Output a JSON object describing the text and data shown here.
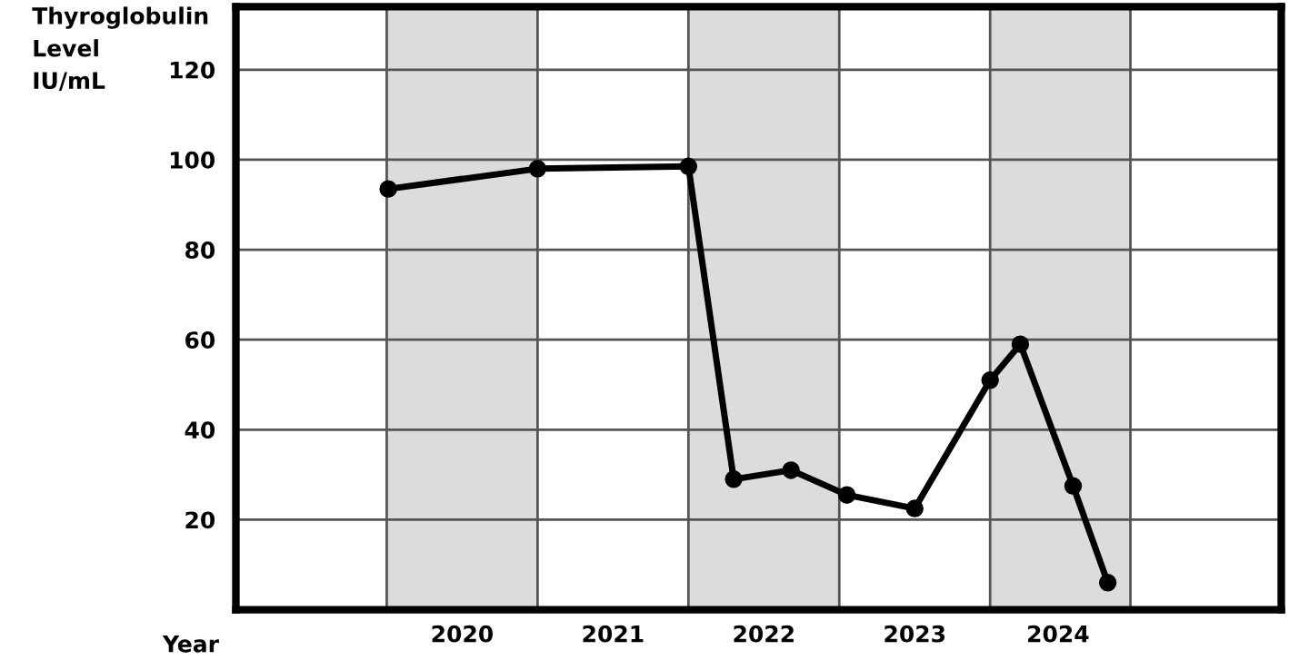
{
  "chart_data": {
    "type": "line",
    "ylabel": "Thyroglobulin\nLevel\nIU/mL",
    "xlabel": "Year",
    "x": [
      2020.01,
      2021.0,
      2022.0,
      2022.3,
      2022.68,
      2023.05,
      2023.5,
      2024.0,
      2024.2,
      2024.55,
      2024.78
    ],
    "series": [
      {
        "color": "#000000",
        "values": [
          93.5,
          98,
          98.5,
          29,
          31,
          25.5,
          22.5,
          51,
          59,
          27.5,
          6
        ]
      }
    ],
    "xlim": [
      2019,
      2025.93
    ],
    "xticks": [
      {
        "value": 2020.5,
        "label": "2020"
      },
      {
        "value": 2021.5,
        "label": "2021"
      },
      {
        "value": 2022.5,
        "label": "2022"
      },
      {
        "value": 2023.5,
        "label": "2023"
      },
      {
        "value": 2024.45,
        "label": "2024"
      }
    ],
    "ylim": [
      0,
      134
    ],
    "yticks": [
      20,
      40,
      60,
      80,
      100,
      120
    ],
    "grid": "y",
    "marker": "circle",
    "line_style": "solid",
    "bands": [
      {
        "axis": "x",
        "from": 2020,
        "to": 2021,
        "color": "#dcdcdc"
      },
      {
        "axis": "x",
        "from": 2022,
        "to": 2023,
        "color": "#dcdcdc"
      },
      {
        "axis": "x",
        "from": 2024,
        "to": 2024.93,
        "color": "#dcdcdc"
      }
    ],
    "ref_lines": [
      {
        "axis": "x",
        "value": 2020,
        "color": "#555555"
      },
      {
        "axis": "x",
        "value": 2021,
        "color": "#555555"
      },
      {
        "axis": "x",
        "value": 2022,
        "color": "#555555"
      },
      {
        "axis": "x",
        "value": 2023,
        "color": "#555555"
      },
      {
        "axis": "x",
        "value": 2024,
        "color": "#555555"
      },
      {
        "axis": "x",
        "value": 2024.93,
        "color": "#555555"
      }
    ]
  }
}
